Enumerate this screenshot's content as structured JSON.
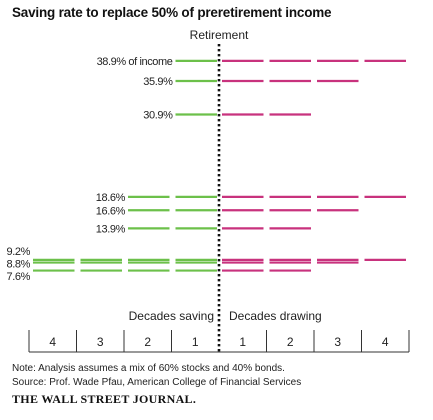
{
  "title": "Saving rate to replace 50% of preretirement income",
  "chart_data": {
    "type": "bar",
    "title": "Saving rate to replace 50% of preretirement income",
    "center_label": "Retirement",
    "left_axis_label": "Decades saving",
    "right_axis_label": "Decades drawing",
    "saving_ticks": [
      "4",
      "3",
      "2",
      "1"
    ],
    "drawing_ticks": [
      "1",
      "2",
      "3",
      "4"
    ],
    "decade_range": [
      0,
      4
    ],
    "colors": {
      "saving": "#6cc04a",
      "drawing": "#c8327d",
      "divider": "#111111"
    },
    "series": [
      {
        "label": "38.9% of income",
        "rate": 38.9,
        "decades_saving": 1,
        "decades_drawing": 4
      },
      {
        "label": "35.9%",
        "rate": 35.9,
        "decades_saving": 1,
        "decades_drawing": 3
      },
      {
        "label": "30.9%",
        "rate": 30.9,
        "decades_saving": 1,
        "decades_drawing": 2
      },
      {
        "label": "18.6%",
        "rate": 18.6,
        "decades_saving": 2,
        "decades_drawing": 4
      },
      {
        "label": "16.6%",
        "rate": 16.6,
        "decades_saving": 2,
        "decades_drawing": 3
      },
      {
        "label": "13.9%",
        "rate": 13.9,
        "decades_saving": 2,
        "decades_drawing": 2
      },
      {
        "label": "9.2%",
        "rate": 9.2,
        "decades_saving": 4,
        "decades_drawing": 4
      },
      {
        "label": "8.8%",
        "rate": 8.8,
        "decades_saving": 4,
        "decades_drawing": 3
      },
      {
        "label": "7.6%",
        "rate": 7.6,
        "decades_saving": 4,
        "decades_drawing": 2
      }
    ]
  },
  "notes": {
    "note": "Note: Analysis assumes a mix of 60% stocks and 40% bonds.",
    "source": "Source: Prof. Wade Pfau, American College of Financial Services"
  },
  "publisher": "THE WALL STREET JOURNAL."
}
